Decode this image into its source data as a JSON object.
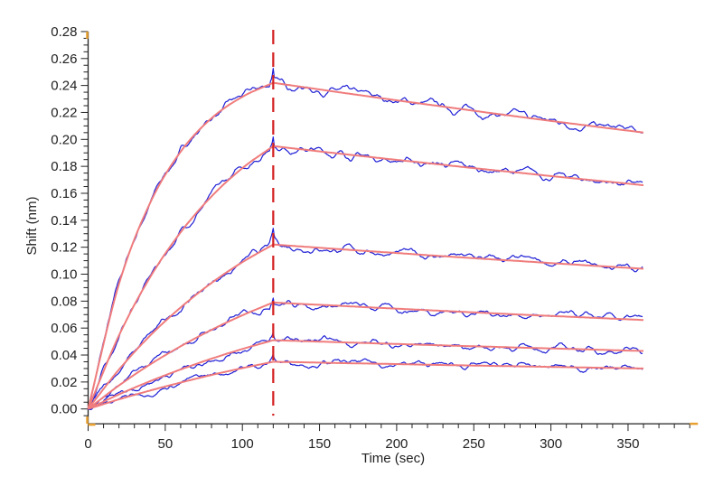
{
  "chart_data": {
    "type": "line",
    "title": "",
    "xlabel": "Time (sec)",
    "ylabel": "Shift (nm)",
    "xlim": [
      0,
      390
    ],
    "ylim": [
      -0.011,
      0.28
    ],
    "x_ticks": [
      "0",
      "50",
      "100",
      "150",
      "200",
      "250",
      "300",
      "350"
    ],
    "y_ticks": [
      "0.00",
      "0.02",
      "0.04",
      "0.06",
      "0.08",
      "0.10",
      "0.12",
      "0.14",
      "0.16",
      "0.18",
      "0.20",
      "0.22",
      "0.24",
      "0.26",
      "0.28"
    ],
    "grid": false,
    "legend": "none",
    "marker_line": {
      "x": 120,
      "style": "dashed",
      "color": "#d42020"
    },
    "colors": {
      "raw": "#1f1fd6",
      "fit": "#f07c7c",
      "axis": "#222222",
      "corner": "#e8a030"
    },
    "x": [
      0,
      20,
      40,
      60,
      80,
      100,
      120,
      140,
      160,
      180,
      200,
      220,
      240,
      260,
      280,
      300,
      320,
      340,
      360
    ],
    "series": [
      {
        "kind": "fit",
        "values": [
          0,
          0.0927,
          0.1524,
          0.1909,
          0.2157,
          0.2316,
          0.242,
          0.2387,
          0.2354,
          0.2322,
          0.229,
          0.2259,
          0.2228,
          0.2197,
          0.2167,
          0.2137,
          0.2108,
          0.2079,
          0.2051
        ]
      },
      {
        "kind": "fit",
        "values": [
          0,
          0.0545,
          0.0974,
          0.1311,
          0.1577,
          0.1787,
          0.195,
          0.1924,
          0.1898,
          0.1873,
          0.1848,
          0.1824,
          0.1799,
          0.1775,
          0.1752,
          0.1728,
          0.1705,
          0.1683,
          0.166
        ]
      },
      {
        "kind": "fit",
        "values": [
          0,
          0.0292,
          0.0542,
          0.0753,
          0.0935,
          0.1089,
          0.122,
          0.1204,
          0.1188,
          0.1172,
          0.1157,
          0.1141,
          0.1126,
          0.1111,
          0.1097,
          0.1082,
          0.1068,
          0.1054,
          0.104
        ]
      },
      {
        "kind": "fit",
        "values": [
          0,
          0.0174,
          0.0329,
          0.0465,
          0.0587,
          0.0695,
          0.079,
          0.0778,
          0.0767,
          0.0755,
          0.0744,
          0.0733,
          0.0722,
          0.0711,
          0.07,
          0.069,
          0.068,
          0.067,
          0.066
        ]
      },
      {
        "kind": "fit",
        "values": [
          0,
          0.0108,
          0.0205,
          0.0293,
          0.0373,
          0.0445,
          0.051,
          0.0503,
          0.0496,
          0.0489,
          0.0482,
          0.0475,
          0.0468,
          0.0462,
          0.0455,
          0.0449,
          0.0443,
          0.0436,
          0.043
        ]
      },
      {
        "kind": "fit",
        "values": [
          0,
          0.0071,
          0.0136,
          0.0196,
          0.0252,
          0.0303,
          0.035,
          0.0346,
          0.0341,
          0.0337,
          0.0333,
          0.0328,
          0.0324,
          0.032,
          0.0316,
          0.0312,
          0.0308,
          0.0304,
          0.03
        ]
      }
    ]
  }
}
